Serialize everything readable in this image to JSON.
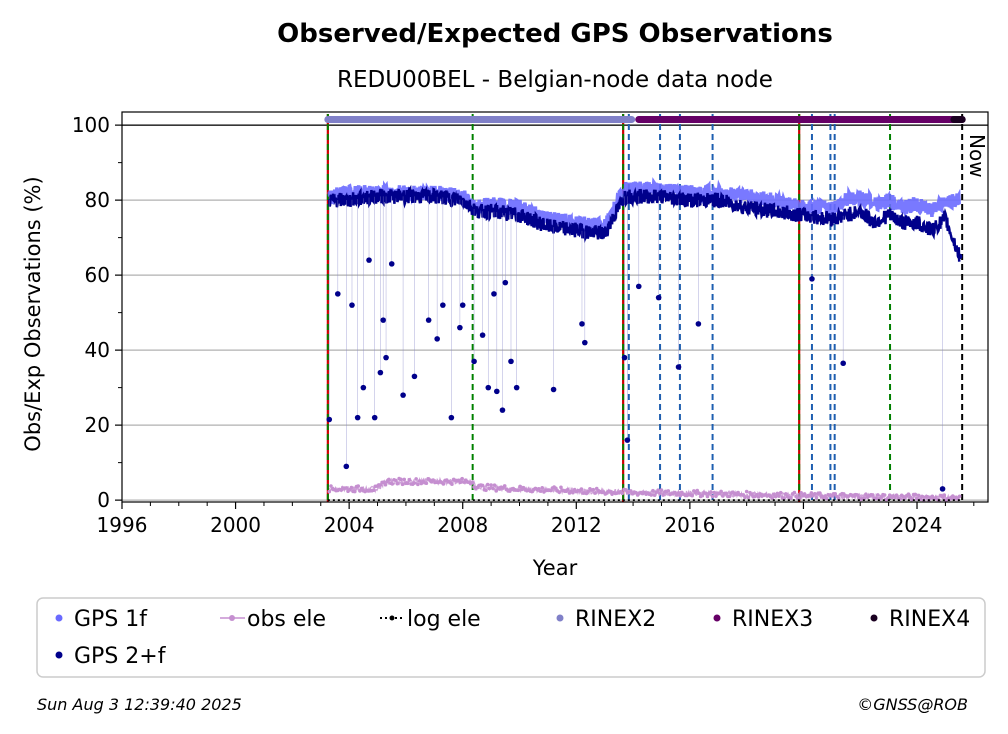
{
  "chart_data": {
    "type": "scatter",
    "title": "Observed/Expected GPS Observations",
    "subtitle": "REDU00BEL - Belgian-node data node",
    "xlabel": "Year",
    "ylabel": "Obs/Exp Observations (%)",
    "xlim": [
      1996,
      2026.5
    ],
    "ylim": [
      -0.5,
      103.5
    ],
    "x_ticks": [
      1996,
      2000,
      2004,
      2008,
      2012,
      2016,
      2020,
      2024
    ],
    "y_ticks": [
      0,
      20,
      40,
      60,
      80,
      100
    ],
    "grid": "horizontal",
    "now_label": "Now",
    "now_x": 2025.59,
    "data_start": 2003.25,
    "colors": {
      "gps_1f": "#6a6aff",
      "gps_2f": "#00008b",
      "obs_ele": "#c58fd0",
      "log_ele": "#000000",
      "rinex2": "#8080c8",
      "rinex3": "#660066",
      "rinex4": "#1a0020",
      "event_green": "#008000",
      "event_red": "#cc0000",
      "event_blue": "#1f5fb0",
      "now_line": "#000000",
      "grid": "#b0b0b0"
    },
    "event_lines": {
      "green": [
        2003.25,
        2008.35,
        2013.65,
        2019.85,
        2023.05
      ],
      "red": [
        2003.25,
        2013.65,
        2019.85
      ],
      "blue": [
        2013.85,
        2014.95,
        2015.65,
        2016.8,
        2020.3,
        2020.95,
        2021.1
      ]
    },
    "rinex_bars": [
      {
        "name": "RINEX2",
        "x_start": 2003.25,
        "x_end": 2013.95,
        "y": 101.5
      },
      {
        "name": "RINEX3",
        "x_start": 2014.2,
        "x_end": 2025.59,
        "y": 101.5
      },
      {
        "name": "RINEX4",
        "x_start": 2025.3,
        "x_end": 2025.59,
        "y": 101.5
      }
    ],
    "series": [
      {
        "name": "GPS 1f",
        "x": [
          2003.3,
          2004.0,
          2005.0,
          2006.0,
          2007.0,
          2008.0,
          2008.5,
          2009.0,
          2010.0,
          2011.0,
          2012.0,
          2013.0,
          2013.7,
          2014.0,
          2015.0,
          2016.0,
          2017.0,
          2018.0,
          2019.0,
          2020.0,
          2021.0,
          2021.5,
          2022.0,
          2022.5,
          2023.0,
          2023.5,
          2024.0,
          2024.5,
          2025.0,
          2025.5
        ],
        "y": [
          81,
          82,
          82,
          82,
          82,
          81,
          78,
          79,
          78,
          75,
          74,
          73,
          83,
          83,
          83,
          82,
          82,
          81,
          80,
          78,
          78,
          80,
          81,
          79,
          80,
          78,
          79,
          77,
          80,
          80
        ]
      },
      {
        "name": "GPS 2+f",
        "x": [
          2003.3,
          2004.0,
          2005.0,
          2006.0,
          2007.0,
          2008.0,
          2008.5,
          2009.0,
          2010.0,
          2011.0,
          2012.0,
          2013.0,
          2013.7,
          2014.0,
          2015.0,
          2016.0,
          2017.0,
          2018.0,
          2019.0,
          2020.0,
          2021.0,
          2021.5,
          2022.0,
          2022.5,
          2023.0,
          2023.5,
          2024.0,
          2024.5,
          2025.0,
          2025.5
        ],
        "y": [
          80,
          80,
          81,
          81,
          81,
          80,
          77,
          77,
          76,
          73,
          72,
          71,
          81,
          81,
          81,
          80,
          80,
          78,
          77,
          76,
          75,
          76,
          77,
          74,
          76,
          74,
          74,
          72,
          75,
          65
        ]
      },
      {
        "name": "obs ele",
        "x": [
          2003.3,
          2005.0,
          2005.3,
          2008.3,
          2008.5,
          2010.0,
          2012.0,
          2014.0,
          2016.0,
          2018.0,
          2020.0,
          2022.0,
          2024.0,
          2025.5
        ],
        "y": [
          3,
          3,
          5,
          5,
          3.5,
          3,
          2.5,
          2,
          1.8,
          1.5,
          1.2,
          1,
          0.8,
          0.6
        ]
      },
      {
        "name": "log ele",
        "x": [
          2003.25,
          2025.59
        ],
        "y": [
          0,
          0
        ]
      }
    ],
    "outliers_gps_2f": {
      "x": [
        2003.3,
        2003.6,
        2003.9,
        2004.1,
        2004.3,
        2004.5,
        2004.7,
        2004.9,
        2005.1,
        2005.2,
        2005.3,
        2005.5,
        2005.9,
        2006.3,
        2006.8,
        2007.1,
        2007.3,
        2007.6,
        2007.9,
        2008.0,
        2008.4,
        2008.7,
        2008.9,
        2009.1,
        2009.2,
        2009.4,
        2009.5,
        2009.7,
        2009.9,
        2011.2,
        2012.2,
        2012.3,
        2013.7,
        2013.8,
        2014.2,
        2014.9,
        2015.6,
        2016.3,
        2020.3,
        2021.4,
        2024.9,
        2025.5
      ],
      "y": [
        21.5,
        55,
        9,
        52,
        22,
        30,
        64,
        22,
        34,
        48,
        38,
        63,
        28,
        33,
        48,
        43,
        52,
        22,
        46,
        52,
        37,
        44,
        30,
        55,
        29,
        24,
        58,
        37,
        30,
        29.5,
        47,
        42,
        38,
        16,
        57,
        54,
        35.5,
        47,
        59,
        36.5,
        3,
        65
      ]
    },
    "legend": [
      {
        "label": "GPS 1f",
        "marker": "dot",
        "color": "#6a6aff"
      },
      {
        "label": "obs ele",
        "marker": "line-dot",
        "color": "#c58fd0"
      },
      {
        "label": "log ele",
        "marker": "dotted",
        "color": "#000000"
      },
      {
        "label": "RINEX2",
        "marker": "dot",
        "color": "#8080c8"
      },
      {
        "label": "RINEX3",
        "marker": "dot",
        "color": "#660066"
      },
      {
        "label": "RINEX4",
        "marker": "dot",
        "color": "#1a0020"
      },
      {
        "label": "GPS 2+f",
        "marker": "dot",
        "color": "#00008b"
      }
    ],
    "legend_placement": "below-plot"
  },
  "footer": {
    "timestamp": "Sun Aug  3 12:39:40 2025",
    "credit": "©GNSS@ROB"
  }
}
